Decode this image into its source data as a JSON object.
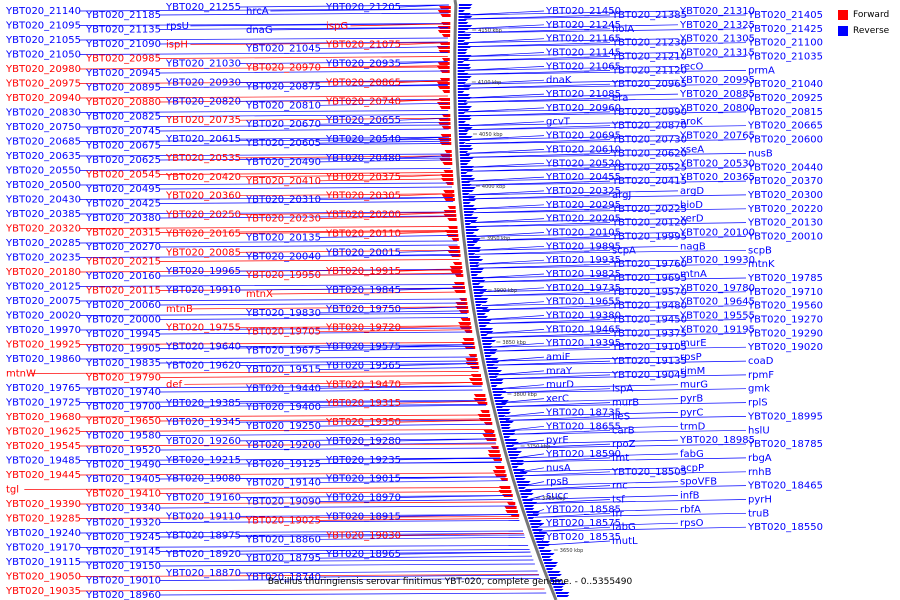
{
  "legend": {
    "forward_label": "Forward",
    "reverse_label": "Reverse",
    "forward_color": "#ff0000",
    "reverse_color": "#0000ff"
  },
  "caption": "Bacillus thuringiensis serovar finitimus YBT-020, complete genome. - 0..5355490",
  "ticks": [
    "4150 kbp",
    "4100 kbp",
    "4050 kbp",
    "4000 kbp",
    "3950 kbp",
    "3900 kbp",
    "3850 kbp",
    "3800 kbp",
    "3750 kbp",
    "3700 kbp",
    "3650 kbp"
  ],
  "left_labels": [
    {
      "t": "YBT020_21140",
      "s": "r"
    },
    {
      "t": "YBT020_21185",
      "s": "r"
    },
    {
      "t": "YBT020_21095",
      "s": "r"
    },
    {
      "t": "YBT020_21135",
      "s": "r"
    },
    {
      "t": "YBT020_21055",
      "s": "r"
    },
    {
      "t": "YBT020_21090",
      "s": "r"
    },
    {
      "t": "YBT020_21050",
      "s": "r"
    },
    {
      "t": "YBT020_20985",
      "s": "f"
    },
    {
      "t": "YBT020_20980",
      "s": "f"
    },
    {
      "t": "YBT020_20945",
      "s": "r"
    },
    {
      "t": "YBT020_20975",
      "s": "f"
    },
    {
      "t": "YBT020_20895",
      "s": "r"
    },
    {
      "t": "YBT020_20940",
      "s": "f"
    },
    {
      "t": "YBT020_20880",
      "s": "f"
    },
    {
      "t": "YBT020_20830",
      "s": "r"
    },
    {
      "t": "YBT020_20825",
      "s": "r"
    },
    {
      "t": "YBT020_20750",
      "s": "r"
    },
    {
      "t": "YBT020_20745",
      "s": "r"
    },
    {
      "t": "YBT020_20685",
      "s": "r"
    },
    {
      "t": "YBT020_20675",
      "s": "r"
    },
    {
      "t": "YBT020_20635",
      "s": "r"
    },
    {
      "t": "YBT020_20625",
      "s": "r"
    },
    {
      "t": "YBT020_20550",
      "s": "r"
    },
    {
      "t": "YBT020_20545",
      "s": "f"
    },
    {
      "t": "YBT020_20500",
      "s": "r"
    },
    {
      "t": "YBT020_20495",
      "s": "r"
    },
    {
      "t": "YBT020_20430",
      "s": "r"
    },
    {
      "t": "YBT020_20425",
      "s": "r"
    },
    {
      "t": "YBT020_20385",
      "s": "r"
    },
    {
      "t": "YBT020_20380",
      "s": "r"
    },
    {
      "t": "YBT020_20320",
      "s": "f"
    },
    {
      "t": "YBT020_20315",
      "s": "f"
    },
    {
      "t": "YBT020_20285",
      "s": "r"
    },
    {
      "t": "YBT020_20270",
      "s": "r"
    },
    {
      "t": "YBT020_20235",
      "s": "r"
    },
    {
      "t": "YBT020_20215",
      "s": "f"
    },
    {
      "t": "YBT020_20180",
      "s": "f"
    },
    {
      "t": "YBT020_20160",
      "s": "r"
    },
    {
      "t": "YBT020_20125",
      "s": "r"
    },
    {
      "t": "YBT020_20115",
      "s": "f"
    },
    {
      "t": "YBT020_20075",
      "s": "r"
    },
    {
      "t": "YBT020_20060",
      "s": "r"
    },
    {
      "t": "YBT020_20020",
      "s": "r"
    },
    {
      "t": "YBT020_20000",
      "s": "r"
    },
    {
      "t": "YBT020_19970",
      "s": "r"
    },
    {
      "t": "YBT020_19945",
      "s": "r"
    },
    {
      "t": "YBT020_19925",
      "s": "f"
    },
    {
      "t": "YBT020_19905",
      "s": "r"
    },
    {
      "t": "YBT020_19860",
      "s": "r"
    },
    {
      "t": "YBT020_19835",
      "s": "r"
    },
    {
      "t": "mtnW",
      "s": "f"
    },
    {
      "t": "YBT020_19790",
      "s": "f"
    },
    {
      "t": "YBT020_19765",
      "s": "r"
    },
    {
      "t": "YBT020_19740",
      "s": "r"
    },
    {
      "t": "YBT020_19725",
      "s": "r"
    },
    {
      "t": "YBT020_19700",
      "s": "r"
    },
    {
      "t": "YBT020_19680",
      "s": "f"
    },
    {
      "t": "YBT020_19650",
      "s": "f"
    },
    {
      "t": "YBT020_19625",
      "s": "f"
    },
    {
      "t": "YBT020_19580",
      "s": "r"
    },
    {
      "t": "YBT020_19545",
      "s": "f"
    },
    {
      "t": "YBT020_19520",
      "s": "r"
    },
    {
      "t": "YBT020_19485",
      "s": "r"
    },
    {
      "t": "YBT020_19490",
      "s": "r"
    },
    {
      "t": "YBT020_19445",
      "s": "f"
    },
    {
      "t": "YBT020_19405",
      "s": "r"
    },
    {
      "t": "tgl",
      "s": "f"
    },
    {
      "t": "YBT020_19410",
      "s": "f"
    },
    {
      "t": "YBT020_19390",
      "s": "f"
    },
    {
      "t": "YBT020_19340",
      "s": "r"
    },
    {
      "t": "YBT020_19285",
      "s": "f"
    },
    {
      "t": "YBT020_19320",
      "s": "r"
    },
    {
      "t": "YBT020_19240",
      "s": "r"
    },
    {
      "t": "YBT020_19245",
      "s": "r"
    },
    {
      "t": "YBT020_19170",
      "s": "r"
    },
    {
      "t": "YBT020_19145",
      "s": "r"
    },
    {
      "t": "YBT020_19115",
      "s": "r"
    },
    {
      "t": "YBT020_19150",
      "s": "r"
    },
    {
      "t": "YBT020_19050",
      "s": "f"
    },
    {
      "t": "YBT020_19010",
      "s": "r"
    },
    {
      "t": "YBT020_19035",
      "s": "f"
    },
    {
      "t": "YBT020_18960",
      "s": "r"
    }
  ],
  "mid_labels": [
    {
      "t": "YBT020_21255",
      "s": "r"
    },
    {
      "t": "hrcA",
      "s": "r"
    },
    {
      "t": "YBT020_21205",
      "s": "r"
    },
    {
      "t": "rpsU",
      "s": "r"
    },
    {
      "t": "dnaG",
      "s": "r"
    },
    {
      "t": "ispG",
      "s": "f"
    },
    {
      "t": "ispH",
      "s": "f"
    },
    {
      "t": "YBT020_21045",
      "s": "r"
    },
    {
      "t": "YBT020_21075",
      "s": "f"
    },
    {
      "t": "YBT020_21030",
      "s": "r"
    },
    {
      "t": "YBT020_20970",
      "s": "f"
    },
    {
      "t": "YBT020_20935",
      "s": "r"
    },
    {
      "t": "YBT020_20930",
      "s": "r"
    },
    {
      "t": "YBT020_20875",
      "s": "r"
    },
    {
      "t": "YBT020_20865",
      "s": "f"
    },
    {
      "t": "YBT020_20820",
      "s": "r"
    },
    {
      "t": "YBT020_20810",
      "s": "r"
    },
    {
      "t": "YBT020_20740",
      "s": "f"
    },
    {
      "t": "YBT020_20735",
      "s": "f"
    },
    {
      "t": "YBT020_20670",
      "s": "r"
    },
    {
      "t": "YBT020_20655",
      "s": "r"
    },
    {
      "t": "YBT020_20615",
      "s": "r"
    },
    {
      "t": "YBT020_20605",
      "s": "r"
    },
    {
      "t": "YBT020_20540",
      "s": "r"
    },
    {
      "t": "YBT020_20535",
      "s": "f"
    },
    {
      "t": "YBT020_20490",
      "s": "r"
    },
    {
      "t": "YBT020_20480",
      "s": "r"
    },
    {
      "t": "YBT020_20420",
      "s": "f"
    },
    {
      "t": "YBT020_20410",
      "s": "f"
    },
    {
      "t": "YBT020_20375",
      "s": "f"
    },
    {
      "t": "YBT020_20360",
      "s": "f"
    },
    {
      "t": "YBT020_20310",
      "s": "r"
    },
    {
      "t": "YBT020_20305",
      "s": "f"
    },
    {
      "t": "YBT020_20250",
      "s": "f"
    },
    {
      "t": "YBT020_20230",
      "s": "f"
    },
    {
      "t": "YBT020_20200",
      "s": "f"
    },
    {
      "t": "YBT020_20165",
      "s": "f"
    },
    {
      "t": "YBT020_20135",
      "s": "r"
    },
    {
      "t": "YBT020_20110",
      "s": "f"
    },
    {
      "t": "YBT020_20085",
      "s": "f"
    },
    {
      "t": "YBT020_20040",
      "s": "r"
    },
    {
      "t": "YBT020_20015",
      "s": "r"
    },
    {
      "t": "YBT020_19965",
      "s": "r"
    },
    {
      "t": "YBT020_19950",
      "s": "f"
    },
    {
      "t": "YBT020_19915",
      "s": "f"
    },
    {
      "t": "YBT020_19910",
      "s": "r"
    },
    {
      "t": "mtnX",
      "s": "f"
    },
    {
      "t": "YBT020_19845",
      "s": "r"
    },
    {
      "t": "mtnB",
      "s": "f"
    },
    {
      "t": "YBT020_19830",
      "s": "r"
    },
    {
      "t": "YBT020_19750",
      "s": "r"
    },
    {
      "t": "YBT020_19755",
      "s": "f"
    },
    {
      "t": "YBT020_19705",
      "s": "f"
    },
    {
      "t": "YBT020_19720",
      "s": "f"
    },
    {
      "t": "YBT020_19640",
      "s": "r"
    },
    {
      "t": "YBT020_19675",
      "s": "r"
    },
    {
      "t": "YBT020_19575",
      "s": "r"
    },
    {
      "t": "YBT020_19620",
      "s": "r"
    },
    {
      "t": "YBT020_19515",
      "s": "r"
    },
    {
      "t": "YBT020_19565",
      "s": "r"
    },
    {
      "t": "def",
      "s": "f"
    },
    {
      "t": "YBT020_19440",
      "s": "r"
    },
    {
      "t": "YBT020_19470",
      "s": "f"
    },
    {
      "t": "YBT020_19385",
      "s": "r"
    },
    {
      "t": "YBT020_19400",
      "s": "r"
    },
    {
      "t": "YBT020_19315",
      "s": "f"
    },
    {
      "t": "YBT020_19345",
      "s": "r"
    },
    {
      "t": "YBT020_19250",
      "s": "r"
    },
    {
      "t": "YBT020_19350",
      "s": "f"
    },
    {
      "t": "YBT020_19260",
      "s": "r"
    },
    {
      "t": "YBT020_19200",
      "s": "r"
    },
    {
      "t": "YBT020_19280",
      "s": "r"
    },
    {
      "t": "YBT020_19215",
      "s": "r"
    },
    {
      "t": "YBT020_19125",
      "s": "r"
    },
    {
      "t": "YBT020_19235",
      "s": "r"
    },
    {
      "t": "YBT020_19080",
      "s": "r"
    },
    {
      "t": "YBT020_19140",
      "s": "r"
    },
    {
      "t": "YBT020_19015",
      "s": "r"
    },
    {
      "t": "YBT020_19160",
      "s": "r"
    },
    {
      "t": "YBT020_19090",
      "s": "r"
    },
    {
      "t": "YBT020_18970",
      "s": "r"
    },
    {
      "t": "YBT020_19110",
      "s": "r"
    },
    {
      "t": "YBT020_19025",
      "s": "f"
    },
    {
      "t": "YBT020_18915",
      "s": "r"
    },
    {
      "t": "YBT020_18975",
      "s": "r"
    },
    {
      "t": "YBT020_18860",
      "s": "r"
    },
    {
      "t": "YBT020_19030",
      "s": "f"
    },
    {
      "t": "YBT020_18920",
      "s": "r"
    },
    {
      "t": "YBT020_18795",
      "s": "r"
    },
    {
      "t": "YBT020_18965",
      "s": "r"
    },
    {
      "t": "YBT020_18870",
      "s": "r"
    },
    {
      "t": "YBT020_18740",
      "s": "r"
    }
  ],
  "right_labels": [
    {
      "t": "YBT020_21450",
      "s": "r"
    },
    {
      "t": "YBT020_21385",
      "s": "r"
    },
    {
      "t": "YBT020_21310",
      "s": "r"
    },
    {
      "t": "YBT020_21405",
      "s": "r"
    },
    {
      "t": "YBT020_21245",
      "s": "r"
    },
    {
      "t": "holA",
      "s": "r"
    },
    {
      "t": "YBT020_21325",
      "s": "r"
    },
    {
      "t": "YBT020_21425",
      "s": "r"
    },
    {
      "t": "YBT020_21165",
      "s": "r"
    },
    {
      "t": "YBT020_21230",
      "s": "r"
    },
    {
      "t": "YBT020_21305",
      "s": "r"
    },
    {
      "t": "YBT020_21100",
      "s": "r"
    },
    {
      "t": "YBT020_21145",
      "s": "r"
    },
    {
      "t": "YBT020_21210",
      "s": "r"
    },
    {
      "t": "YBT020_21315",
      "s": "r"
    },
    {
      "t": "YBT020_21035",
      "s": "r"
    },
    {
      "t": "YBT020_21065",
      "s": "r"
    },
    {
      "t": "YBT020_21120",
      "s": "r"
    },
    {
      "t": "recO",
      "s": "r"
    },
    {
      "t": "prmA",
      "s": "r"
    },
    {
      "t": "dnaK",
      "s": "r"
    },
    {
      "t": "YBT020_20965",
      "s": "r"
    },
    {
      "t": "YBT020_20995",
      "s": "r"
    },
    {
      "t": "YBT020_21040",
      "s": "r"
    },
    {
      "t": "YBT020_21085",
      "s": "r"
    },
    {
      "t": "era",
      "s": "r"
    },
    {
      "t": "YBT020_20885",
      "s": "r"
    },
    {
      "t": "YBT020_20925",
      "s": "r"
    },
    {
      "t": "YBT020_20960",
      "s": "r"
    },
    {
      "t": "YBT020_20990",
      "s": "r"
    },
    {
      "t": "YBT020_20800",
      "s": "r"
    },
    {
      "t": "YBT020_20815",
      "s": "r"
    },
    {
      "t": "gcvT",
      "s": "r"
    },
    {
      "t": "YBT020_20870",
      "s": "r"
    },
    {
      "t": "aroK",
      "s": "r"
    },
    {
      "t": "YBT020_20665",
      "s": "r"
    },
    {
      "t": "YBT020_20695",
      "s": "r"
    },
    {
      "t": "YBT020_20730",
      "s": "r"
    },
    {
      "t": "YBT020_20765",
      "s": "r"
    },
    {
      "t": "YBT020_20600",
      "s": "r"
    },
    {
      "t": "YBT020_20610",
      "s": "r"
    },
    {
      "t": "YBT020_20620",
      "s": "r"
    },
    {
      "t": "xseA",
      "s": "r"
    },
    {
      "t": "nusB",
      "s": "r"
    },
    {
      "t": "YBT020_20520",
      "s": "r"
    },
    {
      "t": "YBT020_20525",
      "s": "r"
    },
    {
      "t": "YBT020_20530",
      "s": "r"
    },
    {
      "t": "YBT020_20440",
      "s": "r"
    },
    {
      "t": "YBT020_20455",
      "s": "r"
    },
    {
      "t": "YBT020_20415",
      "s": "r"
    },
    {
      "t": "YBT020_20365",
      "s": "r"
    },
    {
      "t": "YBT020_20370",
      "s": "r"
    },
    {
      "t": "YBT020_20325",
      "s": "r"
    },
    {
      "t": "argJ",
      "s": "r"
    },
    {
      "t": "argD",
      "s": "r"
    },
    {
      "t": "YBT020_20300",
      "s": "r"
    },
    {
      "t": "YBT020_20295",
      "s": "r"
    },
    {
      "t": "YBT020_20225",
      "s": "r"
    },
    {
      "t": "bioD",
      "s": "r"
    },
    {
      "t": "YBT020_20220",
      "s": "r"
    },
    {
      "t": "YBT020_20205",
      "s": "r"
    },
    {
      "t": "YBT020_20120",
      "s": "r"
    },
    {
      "t": "xerD",
      "s": "r"
    },
    {
      "t": "YBT020_20130",
      "s": "r"
    },
    {
      "t": "YBT020_20105",
      "s": "r"
    },
    {
      "t": "YBT020_19995",
      "s": "r"
    },
    {
      "t": "YBT020_20100",
      "s": "r"
    },
    {
      "t": "YBT020_20010",
      "s": "r"
    },
    {
      "t": "YBT020_19895",
      "s": "r"
    },
    {
      "t": "scpA",
      "s": "r"
    },
    {
      "t": "nagB",
      "s": "r"
    },
    {
      "t": "scpB",
      "s": "r"
    },
    {
      "t": "YBT020_19935",
      "s": "r"
    },
    {
      "t": "YBT020_19760",
      "s": "r"
    },
    {
      "t": "YBT020_19930",
      "s": "r"
    },
    {
      "t": "mtnK",
      "s": "r"
    },
    {
      "t": "YBT020_19825",
      "s": "r"
    },
    {
      "t": "YBT020_19695",
      "s": "r"
    },
    {
      "t": "mtnA",
      "s": "r"
    },
    {
      "t": "YBT020_19785",
      "s": "r"
    },
    {
      "t": "YBT020_19735",
      "s": "r"
    },
    {
      "t": "YBT020_19570",
      "s": "r"
    },
    {
      "t": "YBT020_19780",
      "s": "r"
    },
    {
      "t": "YBT020_19710",
      "s": "r"
    },
    {
      "t": "YBT020_19655",
      "s": "r"
    },
    {
      "t": "YBT020_19480",
      "s": "r"
    },
    {
      "t": "YBT020_19645",
      "s": "r"
    },
    {
      "t": "YBT020_19560",
      "s": "r"
    },
    {
      "t": "YBT020_19380",
      "s": "r"
    },
    {
      "t": "YBT020_19450",
      "s": "r"
    },
    {
      "t": "YBT020_19555",
      "s": "r"
    },
    {
      "t": "YBT020_19270",
      "s": "r"
    },
    {
      "t": "YBT020_19465",
      "s": "r"
    },
    {
      "t": "YBT020_19375",
      "s": "r"
    },
    {
      "t": "YBT020_19195",
      "s": "r"
    },
    {
      "t": "YBT020_19290",
      "s": "r"
    },
    {
      "t": "YBT020_19395",
      "s": "r"
    },
    {
      "t": "YBT020_19105",
      "s": "r"
    },
    {
      "t": "murE",
      "s": "r"
    },
    {
      "t": "YBT020_19020",
      "s": "r"
    },
    {
      "t": "amiF",
      "s": "r"
    },
    {
      "t": "YBT020_19135",
      "s": "r"
    },
    {
      "t": "rpsP",
      "s": "r"
    },
    {
      "t": "coaD",
      "s": "r"
    },
    {
      "t": "mraY",
      "s": "r"
    },
    {
      "t": "YBT020_19045",
      "s": "r"
    },
    {
      "t": "rimM",
      "s": "r"
    },
    {
      "t": "rpmF",
      "s": "r"
    },
    {
      "t": "murD",
      "s": "r"
    },
    {
      "t": "lspA",
      "s": "r"
    },
    {
      "t": "murG",
      "s": "r"
    },
    {
      "t": "gmk",
      "s": "r"
    },
    {
      "t": "xerC",
      "s": "r"
    },
    {
      "t": "murB",
      "s": "r"
    },
    {
      "t": "pyrB",
      "s": "r"
    },
    {
      "t": "rplS",
      "s": "r"
    },
    {
      "t": "YBT020_18735",
      "s": "r"
    },
    {
      "t": "ileS",
      "s": "r"
    },
    {
      "t": "pyrC",
      "s": "r"
    },
    {
      "t": "YBT020_18995",
      "s": "r"
    },
    {
      "t": "YBT020_18655",
      "s": "r"
    },
    {
      "t": "carB",
      "s": "r"
    },
    {
      "t": "trmD",
      "s": "r"
    },
    {
      "t": "hslU",
      "s": "r"
    },
    {
      "t": "pyrE",
      "s": "r"
    },
    {
      "t": "rpoZ",
      "s": "r"
    },
    {
      "t": "YBT020_18985",
      "s": "r"
    },
    {
      "t": "YBT020_18785",
      "s": "r"
    },
    {
      "t": "YBT020_18590",
      "s": "r"
    },
    {
      "t": "fmt",
      "s": "r"
    },
    {
      "t": "fabG",
      "s": "r"
    },
    {
      "t": "rbgA",
      "s": "r"
    },
    {
      "t": "nusA",
      "s": "r"
    },
    {
      "t": "YBT020_18505",
      "s": "r"
    },
    {
      "t": "acpP",
      "s": "r"
    },
    {
      "t": "rnhB",
      "s": "r"
    },
    {
      "t": "rpsB",
      "s": "r"
    },
    {
      "t": "rnc",
      "s": "r"
    },
    {
      "t": "spoVFB",
      "s": "r"
    },
    {
      "t": "YBT020_18465",
      "s": "r"
    },
    {
      "t": "succ",
      "s": "r"
    },
    {
      "t": "tsf",
      "s": "r"
    },
    {
      "t": "infB",
      "s": "r"
    },
    {
      "t": "pyrH",
      "s": "r"
    },
    {
      "t": "YBT020_18585",
      "s": "r"
    },
    {
      "t": "frr",
      "s": "r"
    },
    {
      "t": "rbfA",
      "s": "r"
    },
    {
      "t": "truB",
      "s": "r"
    },
    {
      "t": "YBT020_18575",
      "s": "r"
    },
    {
      "t": "fabG",
      "s": "r"
    },
    {
      "t": "rpsO",
      "s": "r"
    },
    {
      "t": "YBT020_18550",
      "s": "r"
    },
    {
      "t": "YBT020_18535",
      "s": "r"
    },
    {
      "t": "mutL",
      "s": "r"
    }
  ]
}
